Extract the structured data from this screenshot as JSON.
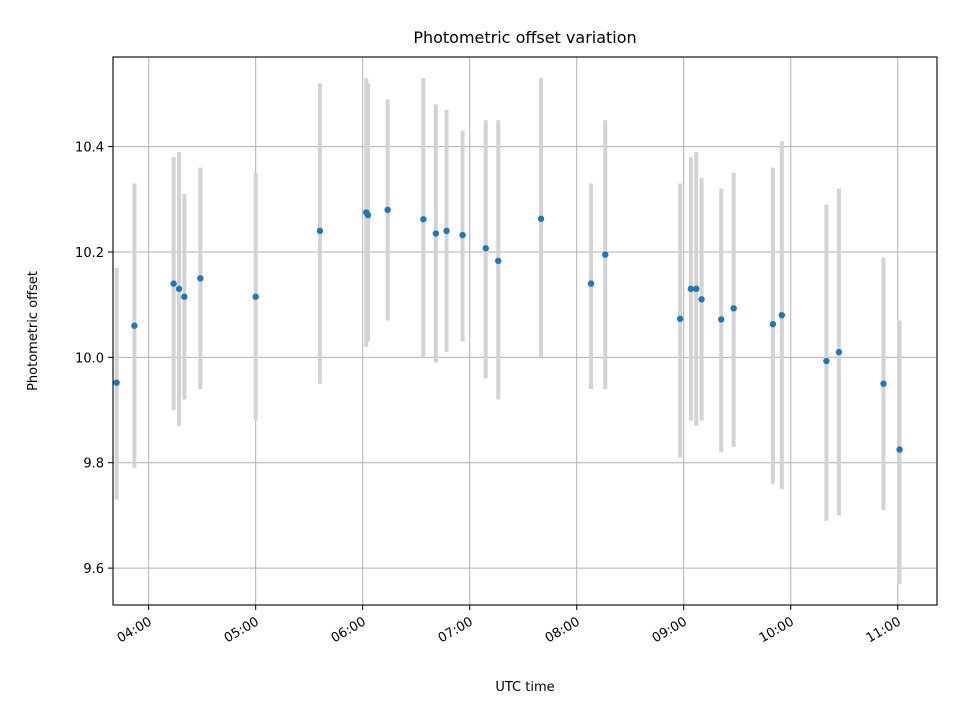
{
  "chart_data": {
    "type": "scatter",
    "title": "Photometric offset variation",
    "xlabel": "UTC time",
    "ylabel": "Photometric offset",
    "x_ticks": [
      "04:00",
      "05:00",
      "06:00",
      "07:00",
      "08:00",
      "09:00",
      "10:00",
      "11:00"
    ],
    "y_ticks": [
      "9.6",
      "9.8",
      "10.0",
      "10.2",
      "10.4"
    ],
    "xlim": [
      "03:40",
      "11:22"
    ],
    "ylim": [
      9.53,
      10.57
    ],
    "grid": true,
    "point_color": "#1f77b4",
    "errorbar_color": "#d3d3d3",
    "points": [
      {
        "time": "03:42",
        "y": 9.952,
        "low": 9.73,
        "high": 10.17
      },
      {
        "time": "03:52",
        "y": 10.06,
        "low": 9.79,
        "high": 10.33
      },
      {
        "time": "04:14",
        "y": 10.14,
        "low": 9.9,
        "high": 10.38
      },
      {
        "time": "04:17",
        "y": 10.13,
        "low": 9.87,
        "high": 10.39
      },
      {
        "time": "04:20",
        "y": 10.115,
        "low": 9.92,
        "high": 10.31
      },
      {
        "time": "04:29",
        "y": 10.15,
        "low": 9.94,
        "high": 10.36
      },
      {
        "time": "05:00",
        "y": 10.115,
        "low": 9.88,
        "high": 10.35
      },
      {
        "time": "05:36",
        "y": 10.24,
        "low": 9.95,
        "high": 10.52
      },
      {
        "time": "06:02",
        "y": 10.275,
        "low": 10.02,
        "high": 10.53
      },
      {
        "time": "06:03",
        "y": 10.27,
        "low": 10.03,
        "high": 10.52
      },
      {
        "time": "06:14",
        "y": 10.28,
        "low": 10.07,
        "high": 10.49
      },
      {
        "time": "06:34",
        "y": 10.262,
        "low": 10.0,
        "high": 10.53
      },
      {
        "time": "06:41",
        "y": 10.235,
        "low": 9.99,
        "high": 10.48
      },
      {
        "time": "06:47",
        "y": 10.24,
        "low": 10.01,
        "high": 10.47
      },
      {
        "time": "06:56",
        "y": 10.232,
        "low": 10.03,
        "high": 10.43
      },
      {
        "time": "07:09",
        "y": 10.207,
        "low": 9.96,
        "high": 10.45
      },
      {
        "time": "07:16",
        "y": 10.183,
        "low": 9.92,
        "high": 10.45
      },
      {
        "time": "07:40",
        "y": 10.263,
        "low": 10.0,
        "high": 10.53
      },
      {
        "time": "08:08",
        "y": 10.14,
        "low": 9.94,
        "high": 10.33
      },
      {
        "time": "08:16",
        "y": 10.195,
        "low": 9.94,
        "high": 10.45
      },
      {
        "time": "08:58",
        "y": 10.073,
        "low": 9.81,
        "high": 10.33
      },
      {
        "time": "09:04",
        "y": 10.13,
        "low": 9.88,
        "high": 10.38
      },
      {
        "time": "09:07",
        "y": 10.13,
        "low": 9.87,
        "high": 10.39
      },
      {
        "time": "09:10",
        "y": 10.11,
        "low": 9.88,
        "high": 10.34
      },
      {
        "time": "09:21",
        "y": 10.072,
        "low": 9.82,
        "high": 10.32
      },
      {
        "time": "09:28",
        "y": 10.093,
        "low": 9.83,
        "high": 10.35
      },
      {
        "time": "09:50",
        "y": 10.063,
        "low": 9.76,
        "high": 10.36
      },
      {
        "time": "09:55",
        "y": 10.08,
        "low": 9.75,
        "high": 10.41
      },
      {
        "time": "10:20",
        "y": 9.993,
        "low": 9.69,
        "high": 10.29
      },
      {
        "time": "10:27",
        "y": 10.01,
        "low": 9.7,
        "high": 10.32
      },
      {
        "time": "10:52",
        "y": 9.95,
        "low": 9.71,
        "high": 10.19
      },
      {
        "time": "11:01",
        "y": 9.825,
        "low": 9.57,
        "high": 10.07
      }
    ]
  }
}
